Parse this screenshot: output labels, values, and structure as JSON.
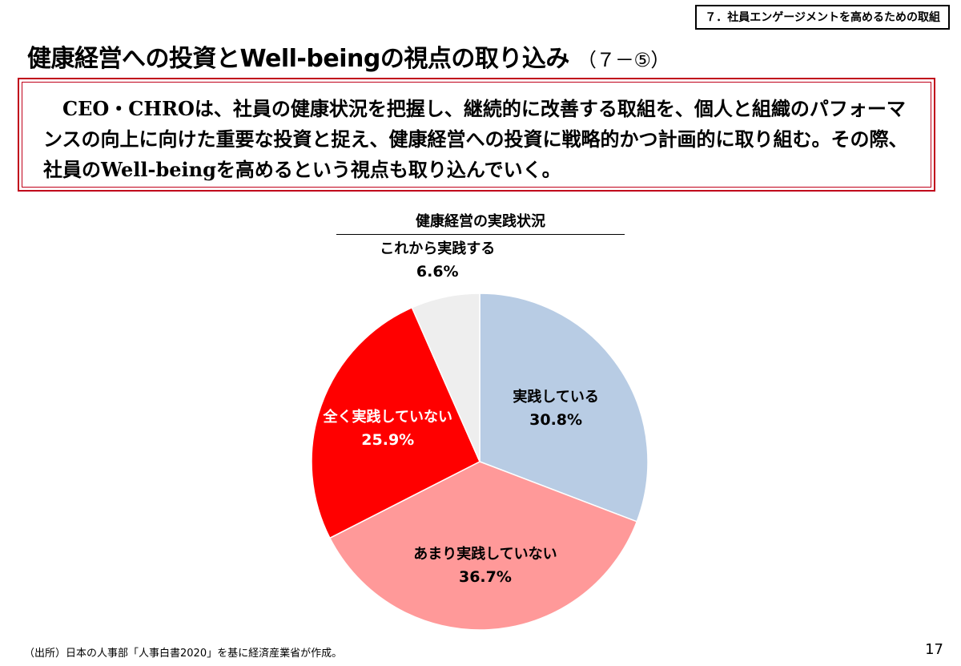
{
  "section_tag": "７．社員エンゲージメントを高めるための取組",
  "page_title": {
    "main": "健康経営への投資とWell-beingの視点の取り込み",
    "sub": "（７－⑤）"
  },
  "message": "CEO・CHROは、社員の健康状況を把握し、継続的に改善する取組を、個人と組織のパフォーマンスの向上に向けた重要な投資と捉え、健康経営への投資に戦略的かつ計画的に取り組む。その際、社員のWell-beingを高めるという視点も取り込んでいく。",
  "chart_data": {
    "type": "pie",
    "title": "健康経営の実践状況",
    "start": "12 o'clock",
    "direction": "clockwise",
    "slices": [
      {
        "label": "実践している",
        "value": 30.8,
        "display": "30.8%",
        "color": "#b8cce4",
        "text_color": "#000000"
      },
      {
        "label": "あまり実践していない",
        "value": 36.7,
        "display": "36.7%",
        "color": "#ff9999",
        "text_color": "#000000"
      },
      {
        "label": "全く実践していない",
        "value": 25.9,
        "display": "25.9%",
        "color": "#ff0000",
        "text_color": "#ffffff"
      },
      {
        "label": "これから実践する",
        "value": 6.6,
        "display": "6.6%",
        "color": "#eeeeee",
        "text_color": "#000000"
      }
    ]
  },
  "source": "（出所）日本の人事部「人事白書2020」を基に経済産業省が作成。",
  "page_number": "17"
}
